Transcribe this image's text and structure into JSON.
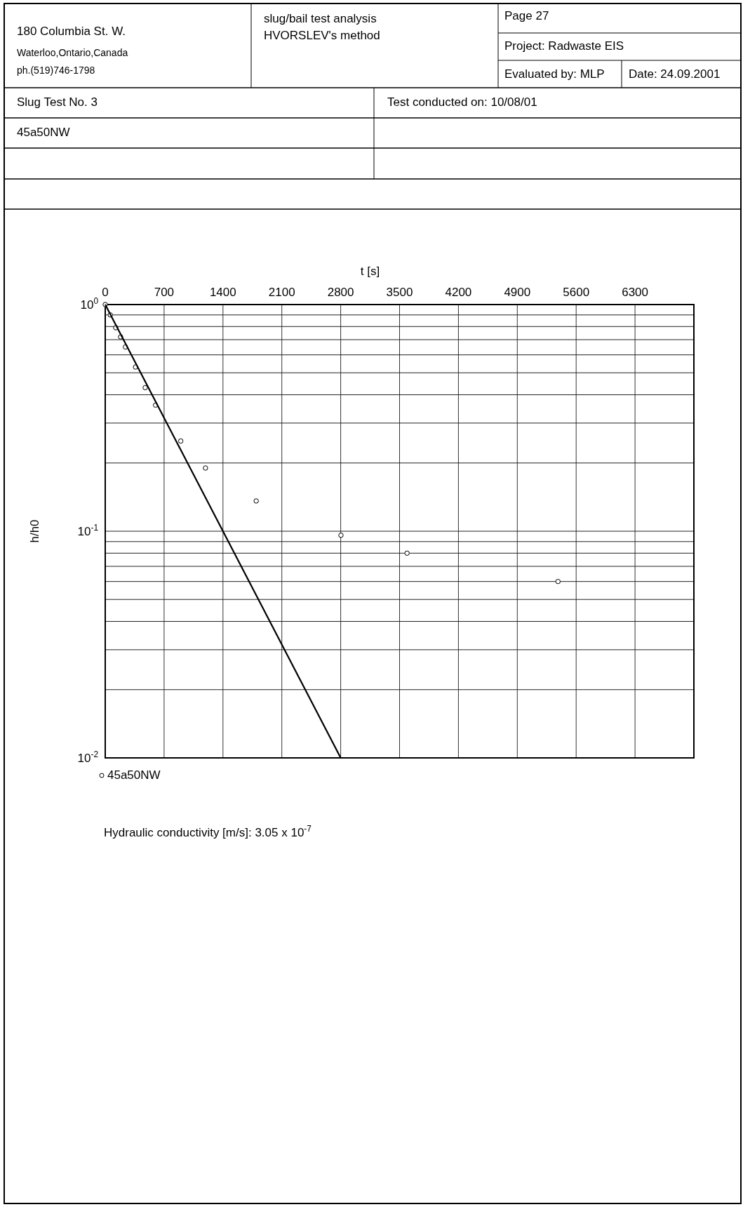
{
  "chart_data": {
    "type": "scatter",
    "xlabel": "t [s]",
    "ylabel": "h/h0",
    "log": "y",
    "grid": true,
    "marker": "circle",
    "legend": "bottom left",
    "xlim": [
      0,
      7000
    ],
    "xticks": [
      0,
      700,
      1400,
      2100,
      2800,
      3500,
      4200,
      4900,
      5600,
      6300
    ],
    "ylim": [
      0.01,
      1
    ],
    "yticks": [
      {
        "value": 1,
        "label": "10$^{0}$"
      },
      {
        "value": 0.9,
        "label": null
      },
      {
        "value": 0.8,
        "label": null
      },
      {
        "value": 0.7,
        "label": null
      },
      {
        "value": 0.6,
        "label": null
      },
      {
        "value": 0.5,
        "label": null
      },
      {
        "value": 0.4,
        "label": null
      },
      {
        "value": 0.3,
        "label": null
      },
      {
        "value": 0.2,
        "label": null
      },
      {
        "value": 0.1,
        "label": "10$^{-1}$"
      },
      {
        "value": 0.09,
        "label": null
      },
      {
        "value": 0.08,
        "label": null
      },
      {
        "value": 0.07,
        "label": null
      },
      {
        "value": 0.06,
        "label": null
      },
      {
        "value": 0.05,
        "label": null
      },
      {
        "value": 0.04,
        "label": null
      },
      {
        "value": 0.03,
        "label": null
      },
      {
        "value": 0.02,
        "label": null
      },
      {
        "value": 0.01,
        "label": "10$^{-2}$"
      }
    ],
    "series": [
      {
        "name": "45a50NW",
        "color": "#000000",
        "x": [
          0,
          60,
          125,
          183,
          240,
          360,
          475,
          598,
          898,
          1192,
          1795,
          2803,
          3589,
          5384
        ],
        "values": [
          1.0,
          0.9,
          0.79,
          0.72,
          0.65,
          0.53,
          0.43,
          0.36,
          0.25,
          0.19,
          0.136,
          0.096,
          0.08,
          0.06
        ]
      },
      {
        "type": "line",
        "marker": "none",
        "color": "#000000",
        "x": [
          0,
          2800
        ],
        "values": [
          1,
          0.01
        ]
      }
    ],
    "annotations": [
      "180 Columbia St. W.",
      "Waterloo,Ontario,Canada",
      "ph.(519)746-1798",
      "slug/bail test analysis",
      "HVORSLEV's method",
      "Page 27",
      "Project: Radwaste EIS",
      "Evaluated by: MLP",
      "Date: 24.09.2001",
      "Slug Test No. 3",
      "Test conducted on: 10/08/01",
      "45a50NW",
      "Hydraulic conductivity [m/s]:  3.05 x 10$^{-7}$"
    ]
  }
}
